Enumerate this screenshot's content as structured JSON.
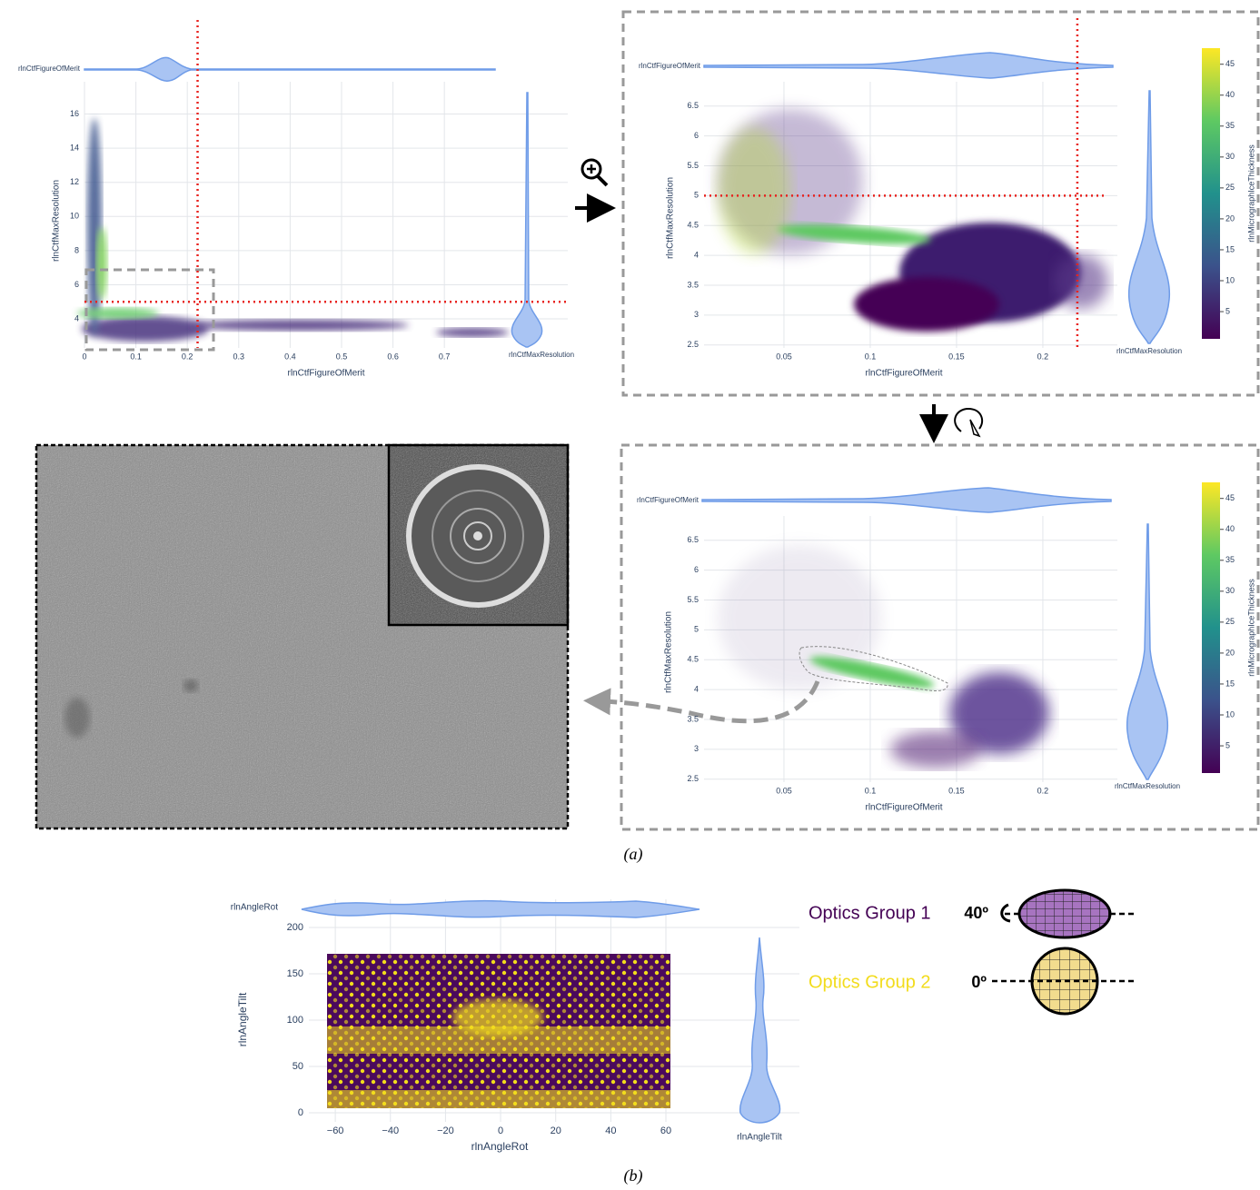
{
  "panel_a": {
    "caption": "(a)",
    "overview": {
      "x_label": "rlnCtfFigureOfMerit",
      "y_label": "rlnCtfMaxResolution",
      "top_violin_label": "rlnCtfFigureOfMerit",
      "side_violin_label": "rlnCtfMaxResolution",
      "xlim": [
        0,
        0.94
      ],
      "ylim": [
        2.3,
        17.2
      ],
      "xticks": [
        0,
        0.1,
        0.2,
        0.3,
        0.4,
        0.5,
        0.6,
        0.7
      ],
      "yticks": [
        4,
        6,
        8,
        10,
        12,
        14,
        16
      ],
      "thresholds": {
        "x": 0.22,
        "y": 5
      },
      "threshold_color": "#e8231f"
    },
    "zoomed": {
      "x_label": "rlnCtfFigureOfMerit",
      "y_label": "rlnCtfMaxResolution",
      "top_violin_label": "rlnCtfFigureOfMerit",
      "side_violin_label": "rlnCtfMaxResolution",
      "xlim": [
        0.0037,
        0.2353
      ],
      "ylim": [
        2.45,
        6.8
      ],
      "xticks": [
        0.05,
        0.1,
        0.15,
        0.2
      ],
      "yticks": [
        2.5,
        3,
        3.5,
        4,
        4.5,
        5,
        5.5,
        6,
        6.5
      ],
      "thresholds": {
        "x": 0.22,
        "y": 5
      },
      "threshold_color": "#e8231f",
      "colorbar": {
        "label": "rlnMicrographIceThickness",
        "lim": [
          0.6,
          47.6
        ],
        "ticks": [
          5,
          10,
          15,
          20,
          25,
          30,
          35,
          40,
          45
        ]
      }
    },
    "selected": {
      "x_label": "rlnCtfFigureOfMerit",
      "y_label": "rlnCtfMaxResolution",
      "top_violin_label": "rlnCtfFigureOfMerit",
      "side_violin_label": "rlnCtfMaxResolution",
      "xlim": [
        0.0037,
        0.2353
      ],
      "ylim": [
        2.45,
        6.8
      ],
      "xticks": [
        0.05,
        0.1,
        0.15,
        0.2
      ],
      "yticks": [
        2.5,
        3,
        3.5,
        4,
        4.5,
        5,
        5.5,
        6,
        6.5
      ],
      "colorbar": {
        "label": "rlnMicrographIceThickness",
        "lim": [
          0.6,
          47.6
        ],
        "ticks": [
          5,
          10,
          15,
          20,
          25,
          30,
          35,
          40,
          45
        ]
      }
    }
  },
  "panel_b": {
    "caption": "(b)",
    "x_label": "rlnAngleRot",
    "y_label": "rlnAngleTilt",
    "top_violin_label": "rlnAngleRot",
    "side_violin_label": "rlnAngleTilt",
    "xlim": [
      -69.6,
      68.9
    ],
    "ylim": [
      -9.8,
      210.8
    ],
    "xticks": [
      {
        "value": -60,
        "label": "−60"
      },
      {
        "value": -40,
        "label": "−40"
      },
      {
        "value": -20,
        "label": "−20"
      },
      0,
      20,
      40,
      60
    ],
    "yticks": [
      0,
      50,
      100,
      150,
      200
    ],
    "legend": [
      {
        "name": "Optics Group 1",
        "color": "#440154",
        "tilt": "40º"
      },
      {
        "name": "Optics Group 2",
        "color": "#f2dc1c",
        "tilt": "0º"
      }
    ]
  }
}
